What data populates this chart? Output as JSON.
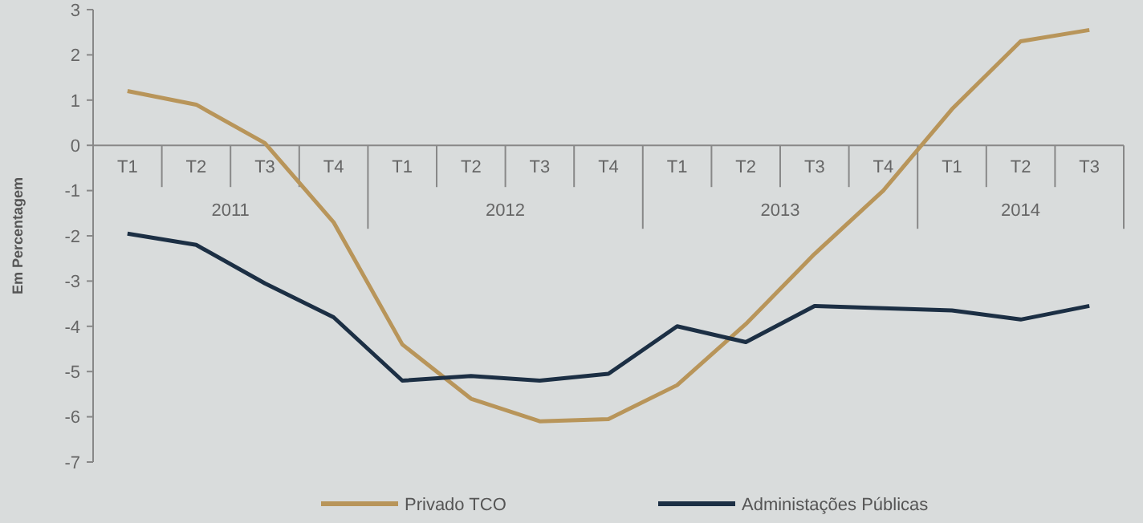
{
  "chart_data": {
    "type": "line",
    "ylabel": "Em Percentagem",
    "categories": [
      "T1",
      "T2",
      "T3",
      "T4",
      "T1",
      "T2",
      "T3",
      "T4",
      "T1",
      "T2",
      "T3",
      "T4",
      "T1",
      "T2",
      "T3"
    ],
    "annotations": [
      "2011",
      "2012",
      "2013",
      "2014"
    ],
    "series": [
      {
        "name": "Privado TCO",
        "color": "#b8955a",
        "values": [
          1.2,
          0.9,
          0.05,
          -1.7,
          -4.4,
          -5.6,
          -6.1,
          -6.05,
          -5.3,
          -3.95,
          -2.4,
          -1.0,
          0.8,
          2.3,
          2.55
        ]
      },
      {
        "name": "Administações Públicas",
        "color": "#1c2f44",
        "values": [
          -1.95,
          -2.2,
          -3.05,
          -3.8,
          -5.2,
          -5.1,
          -5.2,
          -5.05,
          -4.0,
          -4.35,
          -3.55,
          -3.6,
          -3.65,
          -3.85,
          -3.55
        ]
      }
    ],
    "ylim": [
      -7,
      3
    ],
    "yticks": [
      -7,
      -6,
      -5,
      -4,
      -3,
      -2,
      -1,
      0,
      1,
      2,
      3
    ],
    "legend": "bottom",
    "marker": "none",
    "line_style": "solid",
    "grid": false
  }
}
